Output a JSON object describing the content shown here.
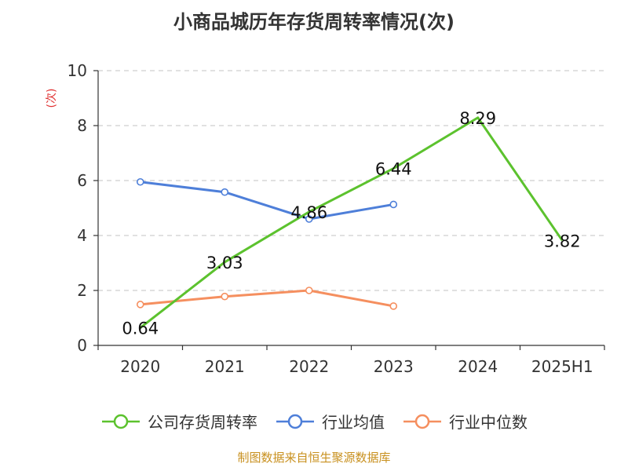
{
  "chart_data": {
    "type": "line",
    "title": "小商品城历年存货周转率情况(次)",
    "ylabel": "(次)",
    "xlabel": "",
    "categories": [
      "2020",
      "2021",
      "2022",
      "2023",
      "2024",
      "2025H1"
    ],
    "ylim": [
      0,
      10
    ],
    "yticks": [
      0,
      2,
      4,
      6,
      8,
      10
    ],
    "grid": "horizontal-dashed",
    "legend_position": "bottom",
    "series": [
      {
        "name": "公司存货周转率",
        "color": "#5cc22e",
        "values": [
          0.64,
          3.03,
          4.86,
          6.44,
          8.29,
          3.82
        ],
        "labels": [
          "0.64",
          "3.03",
          "4.86",
          "6.44",
          "8.29",
          "3.82"
        ]
      },
      {
        "name": "行业均值",
        "color": "#4e7fd9",
        "values": [
          5.95,
          5.58,
          4.6,
          5.13,
          null,
          null
        ]
      },
      {
        "name": "行业中位数",
        "color": "#f58f5f",
        "values": [
          1.49,
          1.78,
          2.0,
          1.43,
          null,
          null
        ]
      }
    ]
  },
  "source_note": "制图数据来自恒生聚源数据库"
}
